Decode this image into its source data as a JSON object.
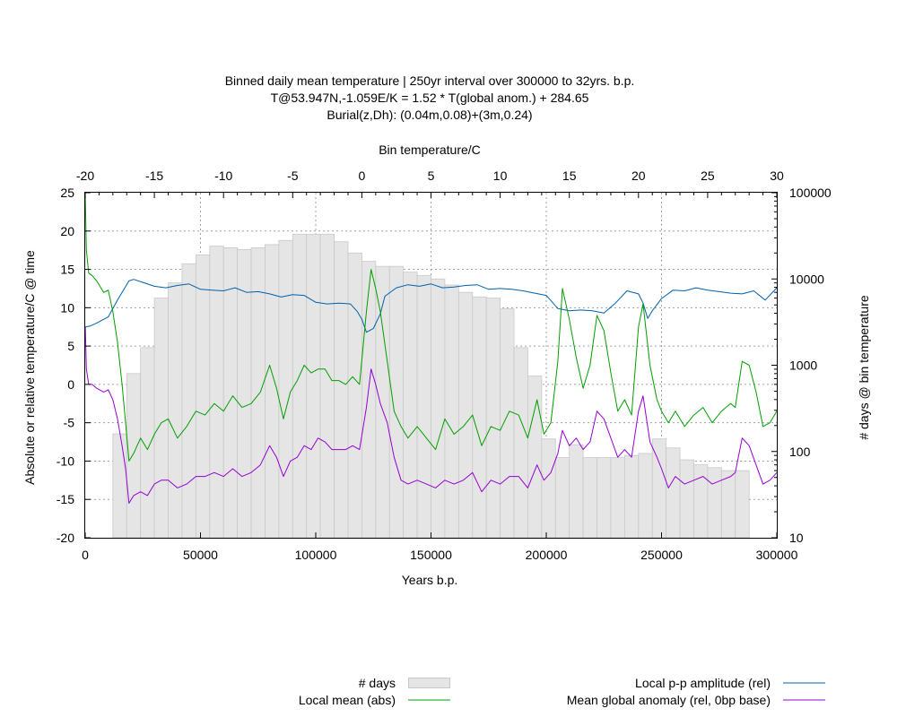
{
  "chart_data": {
    "type": "line",
    "title_lines": [
      "Binned daily mean temperature | 250yr interval over 300000 to 32yrs. b.p.",
      "T@53.947N,-1.059E/K = 1.52 * T(global anom.) + 284.65",
      "Burial(z,Dh): (0.04m,0.08)+(3m,0.24)"
    ],
    "xlabel": "Years b.p.",
    "ylabel": "Absolute or relative temperature/C @ time",
    "x2label": "Bin temperature/C",
    "y2label": "# days @ bin temperature",
    "xlim": [
      0,
      300000
    ],
    "ylim": [
      -20,
      25
    ],
    "x2lim": [
      -20,
      30
    ],
    "y2lim": [
      10,
      100000
    ],
    "y2_scale": "log",
    "x_ticks": [
      "0",
      "50000",
      "100000",
      "150000",
      "200000",
      "250000",
      "300000"
    ],
    "y_ticks": [
      "-20",
      "-15",
      "-10",
      "-5",
      "0",
      "5",
      "10",
      "15",
      "20",
      "25"
    ],
    "x2_ticks": [
      "-20",
      "-15",
      "-10",
      "-5",
      "0",
      "5",
      "10",
      "15",
      "20",
      "25",
      "30"
    ],
    "y2_ticks": [
      "10",
      "100",
      "1000",
      "10000",
      "100000"
    ],
    "grid": true,
    "legend_placement": "bottom",
    "histogram": {
      "name": "# days",
      "color": "#e5e5e5",
      "bin_centers": [
        -17.5,
        -16.5,
        -15.5,
        -14.5,
        -13.5,
        -12.5,
        -11.5,
        -10.5,
        -9.5,
        -8.5,
        -7.5,
        -6.5,
        -5.5,
        -4.5,
        -3.5,
        -2.5,
        -1.5,
        -0.5,
        0.5,
        1.5,
        2.5,
        3.5,
        4.5,
        5.5,
        6.5,
        7.5,
        8.5,
        9.5,
        10.5,
        11.5,
        12.5,
        13.5,
        14.5,
        15.5,
        16.5,
        17.5,
        18.5,
        19.5,
        20.5,
        21.5,
        22.5,
        23.5,
        24.5,
        25.5,
        26.5,
        27.5
      ],
      "values": [
        160,
        800,
        1600,
        6000,
        9000,
        15000,
        19000,
        24000,
        23000,
        22000,
        23000,
        25000,
        28000,
        33000,
        33000,
        33000,
        27000,
        20000,
        16000,
        14000,
        14000,
        12000,
        11000,
        10000,
        8500,
        7000,
        6200,
        6000,
        4500,
        1600,
        750,
        140,
        85,
        120,
        85,
        85,
        85,
        90,
        95,
        140,
        110,
        80,
        70,
        65,
        60,
        60
      ]
    },
    "series": [
      {
        "name": "Local p-p amplitude (rel)",
        "color": "#0060ad",
        "x": [
          32,
          2000,
          5000,
          10000,
          14000,
          17000,
          19000,
          21000,
          25000,
          30000,
          35000,
          40000,
          45000,
          50000,
          55000,
          60000,
          65000,
          70000,
          75000,
          80000,
          85000,
          90000,
          95000,
          100000,
          105000,
          110000,
          115000,
          118000,
          120000,
          122000,
          125000,
          128000,
          130000,
          135000,
          140000,
          145000,
          150000,
          155000,
          160000,
          165000,
          170000,
          175000,
          180000,
          185000,
          190000,
          195000,
          200000,
          205000,
          210000,
          215000,
          220000,
          225000,
          230000,
          235000,
          240000,
          242000,
          244000,
          246000,
          250000,
          255000,
          260000,
          265000,
          270000,
          275000,
          280000,
          285000,
          290000,
          295000,
          300000
        ],
        "y": [
          7.5,
          7.6,
          8.0,
          8.8,
          11.0,
          12.5,
          13.5,
          13.7,
          13.3,
          12.8,
          12.6,
          12.9,
          13.1,
          12.4,
          12.3,
          12.2,
          12.6,
          12.0,
          12.1,
          11.8,
          11.4,
          11.7,
          11.6,
          10.7,
          10.5,
          10.6,
          10.5,
          9.5,
          8.5,
          6.8,
          7.3,
          9.2,
          11.5,
          12.6,
          13.0,
          12.8,
          13.1,
          12.6,
          12.7,
          12.9,
          13.0,
          12.4,
          12.5,
          12.4,
          12.2,
          11.9,
          11.6,
          9.9,
          9.6,
          9.7,
          9.6,
          9.3,
          10.6,
          12.2,
          11.8,
          10.6,
          8.6,
          9.6,
          11.2,
          12.3,
          12.2,
          12.6,
          12.3,
          12.1,
          11.9,
          11.8,
          12.2,
          11.0,
          12.6
        ]
      },
      {
        "name": "Local mean (abs)",
        "color": "#009e00",
        "x": [
          32,
          500,
          1500,
          3000,
          5000,
          8000,
          10000,
          12000,
          14000,
          16000,
          17500,
          19000,
          21000,
          24000,
          27000,
          30000,
          33000,
          36000,
          40000,
          44000,
          48000,
          52000,
          56000,
          60000,
          64000,
          68000,
          72000,
          76000,
          80000,
          83000,
          86000,
          89000,
          92000,
          95000,
          98000,
          101000,
          104000,
          107000,
          110000,
          113000,
          116000,
          119000,
          122000,
          124000,
          126000,
          128000,
          131000,
          134000,
          137000,
          140000,
          144000,
          148000,
          152000,
          156000,
          160000,
          164000,
          168000,
          172000,
          176000,
          180000,
          184000,
          188000,
          192000,
          196000,
          199000,
          202000,
          205000,
          207000,
          210000,
          213000,
          216000,
          219000,
          222000,
          225000,
          228000,
          231000,
          234000,
          237000,
          240000,
          242000,
          245000,
          248000,
          250000,
          253000,
          256000,
          260000,
          264000,
          268000,
          272000,
          276000,
          280000,
          282000,
          285000,
          288000,
          291000,
          294000,
          297000,
          300000
        ],
        "y": [
          24.5,
          17.5,
          14.5,
          14.2,
          13.5,
          12.0,
          12.3,
          9.5,
          5.5,
          0.0,
          -5.0,
          -10.0,
          -9.0,
          -7.0,
          -8.5,
          -6.5,
          -5.0,
          -4.5,
          -7.0,
          -5.5,
          -3.5,
          -4.0,
          -2.5,
          -3.5,
          -1.5,
          -3.0,
          -2.5,
          -1.0,
          2.5,
          -0.5,
          -4.5,
          -1.0,
          0.5,
          2.5,
          1.5,
          2.0,
          2.0,
          0.5,
          0.5,
          0.0,
          1.0,
          0.0,
          9.5,
          15.0,
          12.5,
          9.5,
          3.0,
          -3.5,
          -5.5,
          -7.0,
          -5.5,
          -7.0,
          -8.5,
          -4.5,
          -6.5,
          -5.5,
          -4.0,
          -8.0,
          -5.5,
          -6.0,
          -3.5,
          -4.0,
          -7.0,
          -2.0,
          -6.5,
          -5.0,
          3.0,
          12.5,
          8.5,
          3.5,
          -0.5,
          2.5,
          9.0,
          7.0,
          1.5,
          -3.5,
          -2.0,
          -4.0,
          7.5,
          10.5,
          2.5,
          -2.0,
          -3.5,
          -5.0,
          -3.5,
          -5.5,
          -4.0,
          -3.0,
          -5.0,
          -3.5,
          -2.5,
          -3.0,
          3.0,
          2.5,
          -1.0,
          -5.5,
          -5.0,
          -3.5
        ]
      },
      {
        "name": "Mean global anomaly (rel, 0bp base)",
        "color": "#9400d3",
        "x": [
          32,
          500,
          1500,
          3000,
          5000,
          8000,
          10000,
          12000,
          14000,
          16000,
          17500,
          19000,
          21000,
          24000,
          27000,
          30000,
          33000,
          36000,
          40000,
          44000,
          48000,
          52000,
          56000,
          60000,
          64000,
          68000,
          72000,
          76000,
          80000,
          83000,
          86000,
          89000,
          92000,
          95000,
          98000,
          101000,
          104000,
          107000,
          110000,
          113000,
          116000,
          119000,
          122000,
          124000,
          126000,
          128000,
          131000,
          134000,
          137000,
          140000,
          144000,
          148000,
          152000,
          156000,
          160000,
          164000,
          168000,
          172000,
          176000,
          180000,
          184000,
          188000,
          192000,
          196000,
          199000,
          202000,
          205000,
          207000,
          210000,
          213000,
          216000,
          219000,
          222000,
          225000,
          228000,
          231000,
          234000,
          237000,
          240000,
          242000,
          245000,
          248000,
          250000,
          253000,
          256000,
          260000,
          264000,
          268000,
          272000,
          276000,
          280000,
          282000,
          285000,
          288000,
          291000,
          294000,
          297000,
          300000
        ],
        "y": [
          7.5,
          2.0,
          0.0,
          0.0,
          -0.5,
          -1.0,
          -0.7,
          -2.0,
          -4.5,
          -8.0,
          -11.0,
          -15.5,
          -14.5,
          -14.0,
          -14.5,
          -13.0,
          -12.5,
          -12.5,
          -13.5,
          -13.0,
          -12.0,
          -12.0,
          -11.5,
          -12.0,
          -11.0,
          -12.0,
          -11.5,
          -10.5,
          -8.0,
          -9.5,
          -12.0,
          -10.0,
          -9.5,
          -8.0,
          -8.5,
          -7.0,
          -7.5,
          -8.5,
          -8.5,
          -8.5,
          -8.0,
          -8.5,
          -3.0,
          2.0,
          0.0,
          -2.5,
          -5.0,
          -9.5,
          -12.5,
          -13.0,
          -12.5,
          -13.0,
          -13.5,
          -12.5,
          -13.0,
          -12.5,
          -11.5,
          -14.0,
          -12.5,
          -13.0,
          -12.0,
          -12.0,
          -13.5,
          -10.5,
          -12.5,
          -11.5,
          -9.0,
          -6.0,
          -8.0,
          -7.0,
          -8.5,
          -7.5,
          -3.5,
          -4.5,
          -7.0,
          -9.5,
          -8.5,
          -9.5,
          -3.5,
          -1.5,
          -7.5,
          -9.5,
          -11.0,
          -13.5,
          -12.0,
          -13.0,
          -12.5,
          -12.0,
          -13.0,
          -12.5,
          -12.0,
          -11.5,
          -7.0,
          -8.0,
          -10.5,
          -13.0,
          -12.5,
          -11.5
        ]
      }
    ]
  },
  "legend": {
    "hist_label": "# days",
    "mean_label": "Local mean (abs)",
    "amp_label": "Local p-p amplitude (rel)",
    "anom_label": "Mean global anomaly (rel, 0bp base)"
  }
}
